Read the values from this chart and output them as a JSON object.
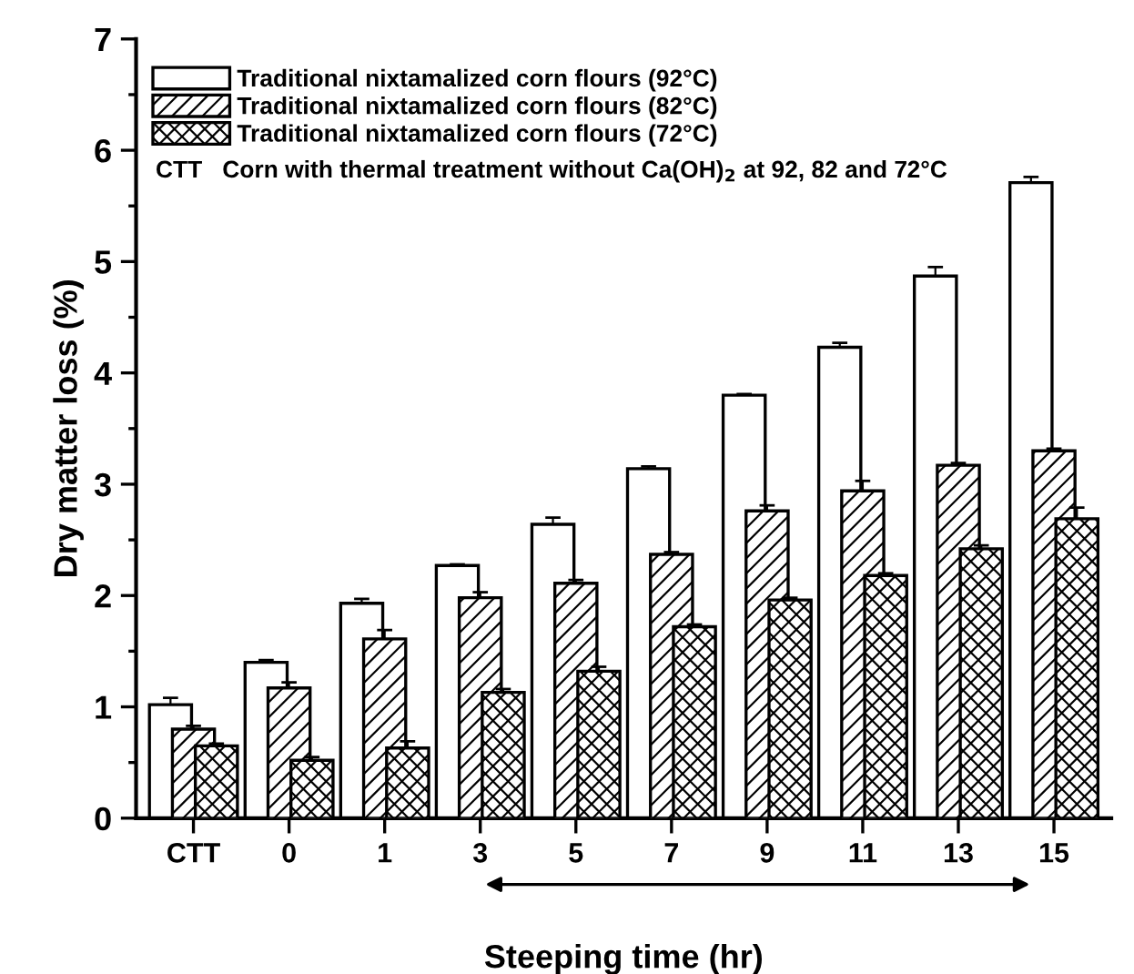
{
  "chart_data": {
    "type": "bar",
    "xlabel": "Steeping time (hr)",
    "ylabel": "Dry matter loss (%)",
    "categories": [
      "CTT",
      "0",
      "1",
      "3",
      "5",
      "7",
      "9",
      "11",
      "13",
      "15"
    ],
    "series": [
      {
        "name": "Traditional nixtamalized corn flours (92°C)",
        "color": "#ffffff",
        "values": [
          1.02,
          1.4,
          1.93,
          2.27,
          2.64,
          3.14,
          3.8,
          4.23,
          4.87,
          5.71
        ],
        "errors": [
          0.06,
          0.02,
          0.04,
          0.01,
          0.06,
          0.02,
          0.01,
          0.04,
          0.08,
          0.05
        ]
      },
      {
        "name": "Traditional nixtamalized corn flours (82°C)",
        "color": "#000000",
        "values": [
          0.8,
          1.17,
          1.61,
          1.98,
          2.11,
          2.37,
          2.76,
          2.94,
          3.17,
          3.3
        ],
        "errors": [
          0.03,
          0.05,
          0.08,
          0.05,
          0.03,
          0.02,
          0.05,
          0.09,
          0.02,
          0.02
        ]
      },
      {
        "name": "Traditional nixtamalized corn flours (72°C)",
        "color": "#000000",
        "values": [
          0.65,
          0.52,
          0.63,
          1.13,
          1.32,
          1.72,
          1.96,
          2.18,
          2.42,
          2.69
        ],
        "errors": [
          0.02,
          0.03,
          0.06,
          0.03,
          0.04,
          0.02,
          0.02,
          0.02,
          0.03,
          0.1
        ]
      }
    ],
    "annotations": [
      "CTT   Corn with thermal treatment without Ca(OH)$_{2}$ at 92, 82 and 72°C"
    ],
    "ylim": [
      0,
      7
    ],
    "yticks": [
      0,
      1,
      2,
      3,
      4,
      5,
      6,
      7
    ],
    "grid": false,
    "legend": "top left"
  }
}
